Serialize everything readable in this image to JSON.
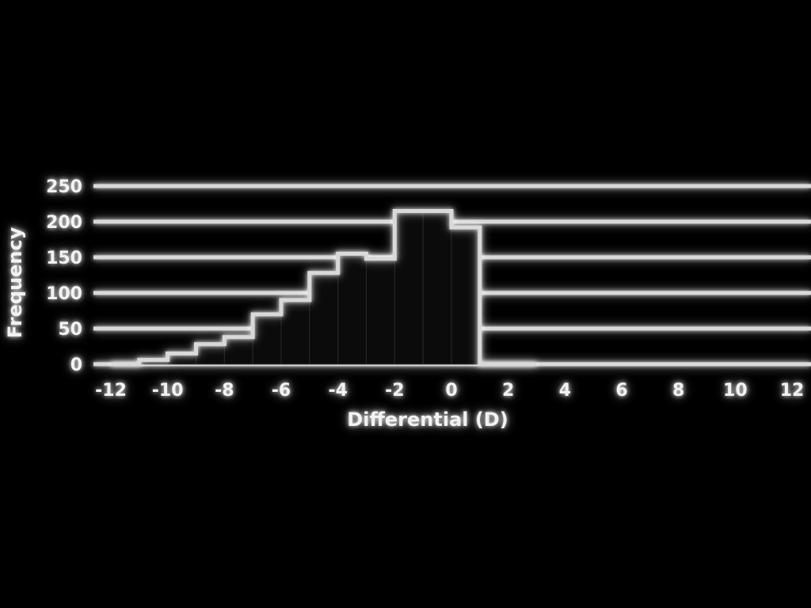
{
  "chart_data": {
    "type": "bar",
    "title": "",
    "xlabel": "Differential (D)",
    "ylabel": "Frequency",
    "xlim": [
      -12,
      12
    ],
    "ylim": [
      0,
      250
    ],
    "grid": true,
    "x_ticks": [
      "-12",
      "-10",
      "-8",
      "-6",
      "-4",
      "-2",
      "0",
      "2",
      "4",
      "6",
      "8",
      "10",
      "12"
    ],
    "y_ticks": [
      "0",
      "50",
      "100",
      "150",
      "200",
      "250"
    ],
    "bin_edges": [
      -12,
      -11,
      -10,
      -9,
      -8,
      -7,
      -6,
      -5,
      -4,
      -3,
      -2,
      -1,
      0,
      1,
      2,
      3
    ],
    "values": [
      0,
      6,
      15,
      28,
      38,
      70,
      90,
      128,
      155,
      148,
      215,
      215,
      192,
      0,
      0
    ],
    "colors": {
      "background": "#000000",
      "lines": "#d9d9d9",
      "text": "#f2f2f2"
    }
  }
}
